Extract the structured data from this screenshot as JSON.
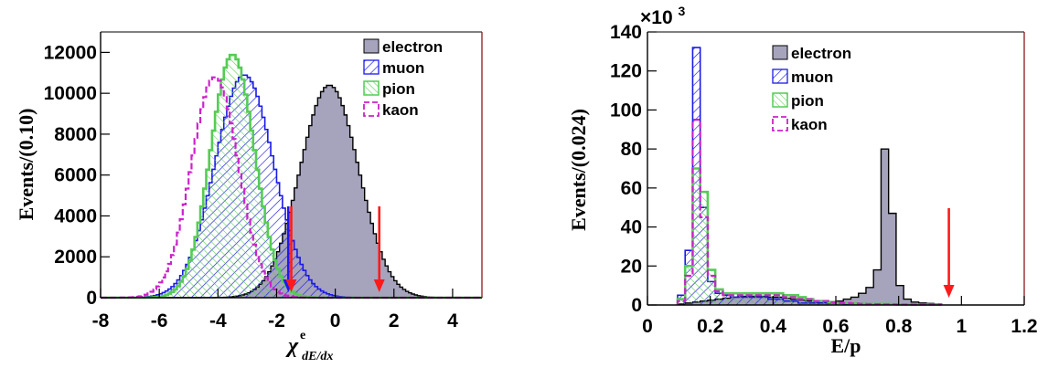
{
  "colors": {
    "electron_fill": "#a6a3bd",
    "muon": "#1a1ae6",
    "pion": "#55cc55",
    "kaon": "#cc22cc",
    "cut_red": "#ff1a1a",
    "cut_blue": "#1a1aee",
    "frame_right": "#8b1a1a"
  },
  "chart_data": [
    {
      "type": "histogram",
      "xlabel": "χ",
      "xlabel_superscript": "e",
      "xlabel_subscript": "dE/dx",
      "ylabel": "Events/(0.10)",
      "xlim": [
        -8,
        5
      ],
      "ylim": [
        0,
        13000
      ],
      "x_ticks": [
        "-8",
        "-6",
        "-4",
        "-2",
        "0",
        "2",
        "4"
      ],
      "y_ticks": [
        "0",
        "2000",
        "4000",
        "6000",
        "8000",
        "10000",
        "12000"
      ],
      "legend": [
        "electron",
        "muon",
        "pion",
        "kaon"
      ],
      "legend_position": "top-right",
      "series": [
        {
          "name": "electron",
          "style": "filled",
          "mean": -0.2,
          "sigma": 1.0,
          "peak": 10400
        },
        {
          "name": "muon",
          "style": "hatched-diagonal",
          "mean": -3.1,
          "sigma": 1.0,
          "peak": 10900
        },
        {
          "name": "pion",
          "style": "hatched-crosshatch",
          "mean": -3.5,
          "sigma": 0.75,
          "peak": 11900
        },
        {
          "name": "kaon",
          "style": "dashed-outline",
          "mean": -4.1,
          "sigma": 0.8,
          "peak": 10800
        }
      ],
      "cut_arrows": [
        {
          "x": -1.6,
          "color": "blue"
        },
        {
          "x": -1.5,
          "color": "red"
        },
        {
          "x": 1.5,
          "color": "red"
        }
      ]
    },
    {
      "type": "histogram",
      "xlabel": "E/p",
      "ylabel": "Events/(0.024)",
      "y_multiplier": "×10",
      "y_multiplier_exponent": "3",
      "xlim": [
        0,
        1.2
      ],
      "ylim": [
        0,
        140
      ],
      "x_ticks": [
        "0",
        "0.2",
        "0.4",
        "0.6",
        "0.8",
        "1",
        "1.2"
      ],
      "y_ticks": [
        "0",
        "20",
        "40",
        "60",
        "80",
        "100",
        "120",
        "140"
      ],
      "legend": [
        "electron",
        "muon",
        "pion",
        "kaon"
      ],
      "legend_position": "top-center",
      "bin_width": 0.024,
      "bin_start": 0.096,
      "series": [
        {
          "name": "electron",
          "style": "filled",
          "values": [
            0.5,
            1,
            1.5,
            2,
            2.5,
            3,
            3.5,
            4,
            4.5,
            4.5,
            4.5,
            4.5,
            4,
            4,
            3.5,
            3,
            2.5,
            2,
            1.5,
            1.5,
            1.5,
            2,
            3,
            4,
            6,
            9,
            18,
            80,
            47,
            10,
            3,
            1.5,
            1,
            0.8,
            0.5
          ]
        },
        {
          "name": "muon",
          "style": "hatched-diagonal",
          "values": [
            5,
            28,
            132,
            50,
            12,
            6,
            5,
            4,
            4,
            4,
            4,
            4,
            3,
            3,
            2,
            2,
            1,
            1,
            1,
            1,
            1,
            1,
            0.5,
            0.5,
            0.5,
            0.5,
            0.5,
            0.5,
            0.5,
            0.3,
            0.3,
            0.3,
            0.2,
            0.2,
            0.2
          ]
        },
        {
          "name": "pion",
          "style": "hatched-crosshatch",
          "values": [
            3,
            20,
            70,
            58,
            18,
            8,
            6,
            6,
            6,
            6,
            6,
            6,
            6,
            6,
            5,
            5,
            4,
            3,
            2,
            2,
            1.5,
            1,
            1,
            0.8,
            0.6,
            0.5,
            0.5,
            0.5,
            0.4,
            0.3,
            0.3,
            0.2,
            0.2,
            0.2,
            0.2
          ]
        },
        {
          "name": "kaon",
          "style": "dashed-outline",
          "values": [
            2,
            15,
            95,
            45,
            15,
            7,
            5,
            5,
            5,
            5,
            5,
            5,
            5,
            5,
            4,
            4,
            3,
            3,
            2,
            2,
            1.5,
            1,
            1,
            0.8,
            0.6,
            0.5,
            0.4,
            0.3,
            0.3,
            0.2,
            0.2,
            0.2,
            0.2,
            0.2,
            0.2
          ]
        }
      ],
      "cut_arrows": [
        {
          "x": 0.96,
          "color": "red"
        }
      ]
    }
  ]
}
